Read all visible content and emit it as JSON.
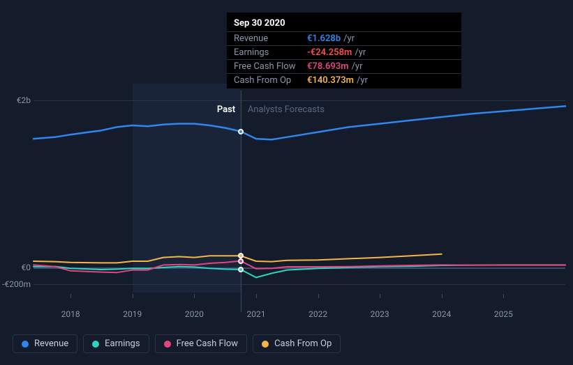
{
  "chart": {
    "type": "line",
    "background_color": "#141b2a",
    "grid_color": "#2a3548",
    "baseline_color": "#3a4a68",
    "label_color": "#8a95ab",
    "label_fontsize": 12,
    "x_domain": [
      2017.4,
      2026.0
    ],
    "y_domain_m": [
      -300,
      2200
    ],
    "y_ticks": [
      {
        "label": "€2b",
        "value_m": 2000
      },
      {
        "label": "€0",
        "value_m": 0
      },
      {
        "label": "-€200m",
        "value_m": -200
      }
    ],
    "x_ticks": [
      {
        "label": "2018",
        "value": 2018
      },
      {
        "label": "2019",
        "value": 2019
      },
      {
        "label": "2020",
        "value": 2020
      },
      {
        "label": "2021",
        "value": 2021
      },
      {
        "label": "2022",
        "value": 2022
      },
      {
        "label": "2023",
        "value": 2023
      },
      {
        "label": "2024",
        "value": 2024
      },
      {
        "label": "2025",
        "value": 2025
      }
    ],
    "shaded_range": {
      "from": 2019.0,
      "to": 2020.75
    },
    "divider_x": 2020.75,
    "period_labels": {
      "past": "Past",
      "forecast": "Analysts Forecasts"
    },
    "series": [
      {
        "id": "revenue",
        "label": "Revenue",
        "color": "#2f86eb",
        "width": 2.5,
        "data": [
          [
            2017.4,
            1540
          ],
          [
            2017.75,
            1560
          ],
          [
            2018.0,
            1590
          ],
          [
            2018.5,
            1640
          ],
          [
            2018.75,
            1680
          ],
          [
            2019.0,
            1700
          ],
          [
            2019.25,
            1690
          ],
          [
            2019.5,
            1710
          ],
          [
            2019.75,
            1720
          ],
          [
            2020.0,
            1720
          ],
          [
            2020.25,
            1700
          ],
          [
            2020.5,
            1670
          ],
          [
            2020.75,
            1628
          ],
          [
            2021.0,
            1540
          ],
          [
            2021.25,
            1530
          ],
          [
            2021.5,
            1560
          ],
          [
            2022.0,
            1620
          ],
          [
            2022.5,
            1680
          ],
          [
            2023.0,
            1720
          ],
          [
            2023.5,
            1760
          ],
          [
            2024.0,
            1800
          ],
          [
            2024.5,
            1840
          ],
          [
            2025.0,
            1870
          ],
          [
            2025.5,
            1900
          ],
          [
            2026.0,
            1930
          ]
        ]
      },
      {
        "id": "earnings",
        "label": "Earnings",
        "color": "#2ad6c0",
        "width": 2,
        "data": [
          [
            2017.4,
            10
          ],
          [
            2017.75,
            12
          ],
          [
            2018.0,
            -10
          ],
          [
            2018.5,
            -25
          ],
          [
            2018.75,
            -20
          ],
          [
            2019.0,
            -10
          ],
          [
            2019.25,
            -12
          ],
          [
            2019.5,
            0
          ],
          [
            2019.75,
            10
          ],
          [
            2020.0,
            5
          ],
          [
            2020.25,
            -10
          ],
          [
            2020.5,
            -20
          ],
          [
            2020.75,
            -24.258
          ],
          [
            2021.0,
            -120
          ],
          [
            2021.25,
            -70
          ],
          [
            2021.5,
            -30
          ],
          [
            2022.0,
            -10
          ],
          [
            2022.5,
            0
          ],
          [
            2023.0,
            10
          ],
          [
            2023.5,
            15
          ],
          [
            2024.0,
            25
          ],
          [
            2024.5,
            28
          ],
          [
            2025.0,
            30
          ],
          [
            2025.5,
            30
          ],
          [
            2026.0,
            30
          ]
        ]
      },
      {
        "id": "fcf",
        "label": "Free Cash Flow",
        "color": "#e5447e",
        "width": 2,
        "data": [
          [
            2017.4,
            30
          ],
          [
            2017.75,
            10
          ],
          [
            2018.0,
            -40
          ],
          [
            2018.5,
            -55
          ],
          [
            2018.75,
            -60
          ],
          [
            2019.0,
            -30
          ],
          [
            2019.25,
            -30
          ],
          [
            2019.5,
            30
          ],
          [
            2019.75,
            35
          ],
          [
            2020.0,
            30
          ],
          [
            2020.25,
            50
          ],
          [
            2020.5,
            60
          ],
          [
            2020.75,
            78.693
          ],
          [
            2021.0,
            -15
          ],
          [
            2021.25,
            -10
          ],
          [
            2021.5,
            8
          ],
          [
            2022.0,
            8
          ],
          [
            2022.5,
            10
          ],
          [
            2023.0,
            18
          ],
          [
            2023.5,
            25
          ],
          [
            2024.0,
            30
          ],
          [
            2024.5,
            28
          ],
          [
            2025.0,
            28
          ],
          [
            2025.5,
            28
          ],
          [
            2026.0,
            28
          ]
        ]
      },
      {
        "id": "cfo",
        "label": "Cash From Op",
        "color": "#f5b547",
        "width": 2,
        "data": [
          [
            2017.4,
            75
          ],
          [
            2017.75,
            70
          ],
          [
            2018.0,
            60
          ],
          [
            2018.5,
            55
          ],
          [
            2018.75,
            55
          ],
          [
            2019.0,
            75
          ],
          [
            2019.25,
            75
          ],
          [
            2019.5,
            120
          ],
          [
            2019.75,
            130
          ],
          [
            2020.0,
            120
          ],
          [
            2020.25,
            140
          ],
          [
            2020.5,
            140
          ],
          [
            2020.75,
            140.373
          ],
          [
            2021.0,
            75
          ],
          [
            2021.25,
            70
          ],
          [
            2021.5,
            85
          ],
          [
            2022.0,
            90
          ],
          [
            2022.5,
            105
          ],
          [
            2023.0,
            120
          ],
          [
            2023.5,
            140
          ],
          [
            2024.0,
            160
          ]
        ]
      }
    ],
    "highlight_x": 2020.75,
    "highlight_markers": [
      {
        "series": "revenue",
        "value_m": 1628,
        "color": "#2f86eb"
      },
      {
        "series": "cfo",
        "value_m": 140.373,
        "color": "#f5b547"
      },
      {
        "series": "fcf",
        "value_m": 78.693,
        "color": "#e5447e"
      },
      {
        "series": "earnings",
        "value_m": -24.258,
        "color": "#2ad6c0"
      }
    ]
  },
  "tooltip": {
    "title": "Sep 30 2020",
    "unit_suffix": "/yr",
    "rows": [
      {
        "label": "Revenue",
        "value": "€1.628b",
        "color": "#2f86eb"
      },
      {
        "label": "Earnings",
        "value": "-€24.258m",
        "color": "#ff4d4d"
      },
      {
        "label": "Free Cash Flow",
        "value": "€78.693m",
        "color": "#e5447e"
      },
      {
        "label": "Cash From Op",
        "value": "€140.373m",
        "color": "#f5b547"
      }
    ]
  },
  "legend": {
    "items": [
      {
        "label": "Revenue",
        "color": "#2f86eb"
      },
      {
        "label": "Earnings",
        "color": "#2ad6c0"
      },
      {
        "label": "Free Cash Flow",
        "color": "#e5447e"
      },
      {
        "label": "Cash From Op",
        "color": "#f5b547"
      }
    ]
  }
}
